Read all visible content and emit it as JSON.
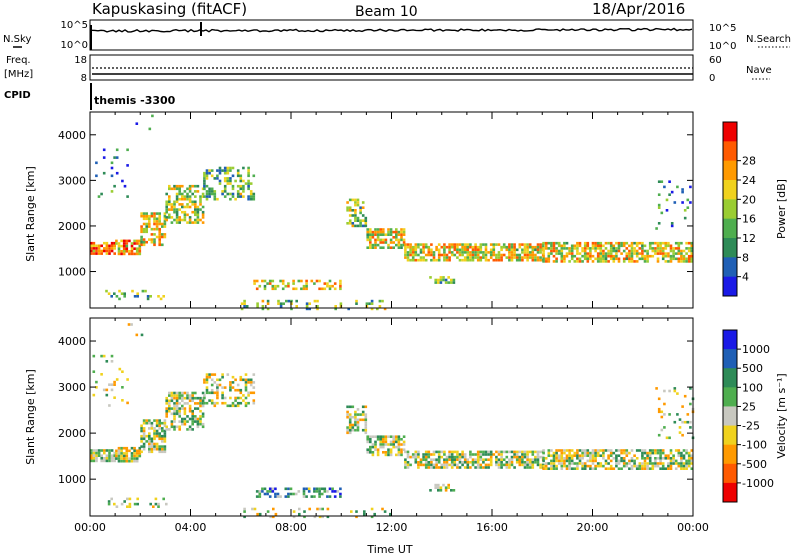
{
  "header": {
    "station": "Kapuskasing (fitACF)",
    "beam": "Beam 10",
    "date": "18/Apr/2016"
  },
  "side_labels": {
    "nsky": "N.Sky",
    "freq_line1": "Freq.",
    "freq_line2": "[MHz]",
    "cpid": "CPID",
    "nsearch": "N.Search",
    "nave": "Nave"
  },
  "noise_panel": {
    "left_ticks": [
      "10^5",
      "10^0"
    ],
    "right_ticks": [
      "10^5",
      "10^0"
    ]
  },
  "freq_panel": {
    "left_ticks": [
      "18",
      "8"
    ],
    "right_ticks": [
      "60",
      "0"
    ]
  },
  "cpid_panel": {
    "label": "themis -3300"
  },
  "colors": {
    "power": [
      "#1a1ae6",
      "#1f5fb5",
      "#2e8b57",
      "#4fae4f",
      "#9acd32",
      "#f0d21e",
      "#ff9a00",
      "#ff5a00",
      "#ee0000"
    ],
    "velocity": [
      "#1a1ae6",
      "#1f5fb5",
      "#2e8b57",
      "#4fae4f",
      "#c8c8c0",
      "#f0d21e",
      "#ff9a00",
      "#ff5a00",
      "#ee0000"
    ]
  },
  "chart_data": [
    {
      "type": "heatmap",
      "ylabel": "Slant Range [km]",
      "yticks": [
        1000,
        2000,
        3000,
        4000
      ],
      "ylim": [
        200,
        4500
      ],
      "xlim": [
        0,
        24
      ],
      "colorbar": {
        "label": "Power [dB]",
        "ticks": [
          "4",
          "8",
          "12",
          "16",
          "20",
          "24",
          "28"
        ],
        "range": [
          0,
          30
        ]
      },
      "regions": [
        {
          "t0": 0.0,
          "t1": 1.0,
          "r0": 1380,
          "r1": 1650,
          "level": 0.8,
          "density": 0.85
        },
        {
          "t0": 1.0,
          "t1": 2.0,
          "r0": 1400,
          "r1": 1700,
          "level": 0.7,
          "density": 0.8
        },
        {
          "t0": 2.0,
          "t1": 3.0,
          "r0": 1600,
          "r1": 2300,
          "level": 0.6,
          "density": 0.7
        },
        {
          "t0": 3.0,
          "t1": 4.5,
          "r0": 2100,
          "r1": 2900,
          "level": 0.5,
          "density": 0.6
        },
        {
          "t0": 4.5,
          "t1": 6.5,
          "r0": 2600,
          "r1": 3300,
          "level": 0.4,
          "density": 0.45
        },
        {
          "t0": 0.1,
          "t1": 1.5,
          "r0": 2600,
          "r1": 3700,
          "level": 0.2,
          "density": 0.08
        },
        {
          "t0": 1.5,
          "t1": 2.5,
          "r0": 4000,
          "r1": 4500,
          "level": 0.2,
          "density": 0.06
        },
        {
          "t0": 6.5,
          "t1": 10.0,
          "r0": 620,
          "r1": 820,
          "level": 0.6,
          "density": 0.5
        },
        {
          "t0": 0.5,
          "t1": 3.0,
          "r0": 400,
          "r1": 600,
          "level": 0.4,
          "density": 0.25
        },
        {
          "t0": 10.2,
          "t1": 11.0,
          "r0": 2000,
          "r1": 2600,
          "level": 0.45,
          "density": 0.55
        },
        {
          "t0": 11.0,
          "t1": 12.5,
          "r0": 1500,
          "r1": 1950,
          "level": 0.6,
          "density": 0.7
        },
        {
          "t0": 12.5,
          "t1": 18.0,
          "r0": 1250,
          "r1": 1620,
          "level": 0.6,
          "density": 0.7
        },
        {
          "t0": 18.0,
          "t1": 24.0,
          "r0": 1250,
          "r1": 1650,
          "level": 0.6,
          "density": 0.7
        },
        {
          "t0": 22.5,
          "t1": 24.0,
          "r0": 1900,
          "r1": 3000,
          "level": 0.25,
          "density": 0.1
        },
        {
          "t0": 13.5,
          "t1": 14.5,
          "r0": 750,
          "r1": 900,
          "level": 0.35,
          "density": 0.4
        },
        {
          "t0": 6.0,
          "t1": 12.0,
          "r0": 200,
          "r1": 380,
          "level": 0.4,
          "density": 0.2
        }
      ]
    },
    {
      "type": "heatmap",
      "ylabel": "Slant Range [km]",
      "xlabel": "Time UT",
      "yticks": [
        1000,
        2000,
        3000,
        4000
      ],
      "xticks": [
        "00:00",
        "04:00",
        "08:00",
        "12:00",
        "16:00",
        "20:00",
        "00:00"
      ],
      "ylim": [
        200,
        4500
      ],
      "xlim": [
        0,
        24
      ],
      "colorbar": {
        "label": "Velocity [m s⁻¹]",
        "ticks": [
          "1000",
          "500",
          "100",
          "25",
          "-25",
          "-100",
          "-500",
          "-1000"
        ],
        "range": [
          -1000,
          1000
        ]
      },
      "regions": [
        {
          "t0": 0.0,
          "t1": 1.0,
          "r0": 1380,
          "r1": 1650,
          "level": 0.5,
          "density": 0.85
        },
        {
          "t0": 1.0,
          "t1": 2.0,
          "r0": 1400,
          "r1": 1700,
          "level": 0.5,
          "density": 0.8
        },
        {
          "t0": 2.0,
          "t1": 3.0,
          "r0": 1600,
          "r1": 2300,
          "level": 0.5,
          "density": 0.7
        },
        {
          "t0": 3.0,
          "t1": 4.5,
          "r0": 2100,
          "r1": 2900,
          "level": 0.5,
          "density": 0.6
        },
        {
          "t0": 4.5,
          "t1": 6.5,
          "r0": 2600,
          "r1": 3300,
          "level": 0.5,
          "density": 0.45
        },
        {
          "t0": 0.1,
          "t1": 1.5,
          "r0": 2600,
          "r1": 3700,
          "level": 0.5,
          "density": 0.08
        },
        {
          "t0": 1.5,
          "t1": 2.5,
          "r0": 4000,
          "r1": 4500,
          "level": 0.5,
          "density": 0.06
        },
        {
          "t0": 6.5,
          "t1": 10.0,
          "r0": 620,
          "r1": 820,
          "level": 0.3,
          "density": 0.5
        },
        {
          "t0": 0.5,
          "t1": 3.0,
          "r0": 400,
          "r1": 600,
          "level": 0.5,
          "density": 0.25
        },
        {
          "t0": 10.2,
          "t1": 11.0,
          "r0": 2000,
          "r1": 2600,
          "level": 0.5,
          "density": 0.55
        },
        {
          "t0": 11.0,
          "t1": 12.5,
          "r0": 1500,
          "r1": 1950,
          "level": 0.5,
          "density": 0.7
        },
        {
          "t0": 12.5,
          "t1": 18.0,
          "r0": 1250,
          "r1": 1620,
          "level": 0.5,
          "density": 0.7
        },
        {
          "t0": 18.0,
          "t1": 24.0,
          "r0": 1250,
          "r1": 1650,
          "level": 0.5,
          "density": 0.7
        },
        {
          "t0": 22.5,
          "t1": 24.0,
          "r0": 1900,
          "r1": 3000,
          "level": 0.5,
          "density": 0.1
        },
        {
          "t0": 13.5,
          "t1": 14.5,
          "r0": 750,
          "r1": 900,
          "level": 0.5,
          "density": 0.4
        },
        {
          "t0": 6.0,
          "t1": 12.0,
          "r0": 200,
          "r1": 380,
          "level": 0.5,
          "density": 0.2
        }
      ]
    }
  ]
}
